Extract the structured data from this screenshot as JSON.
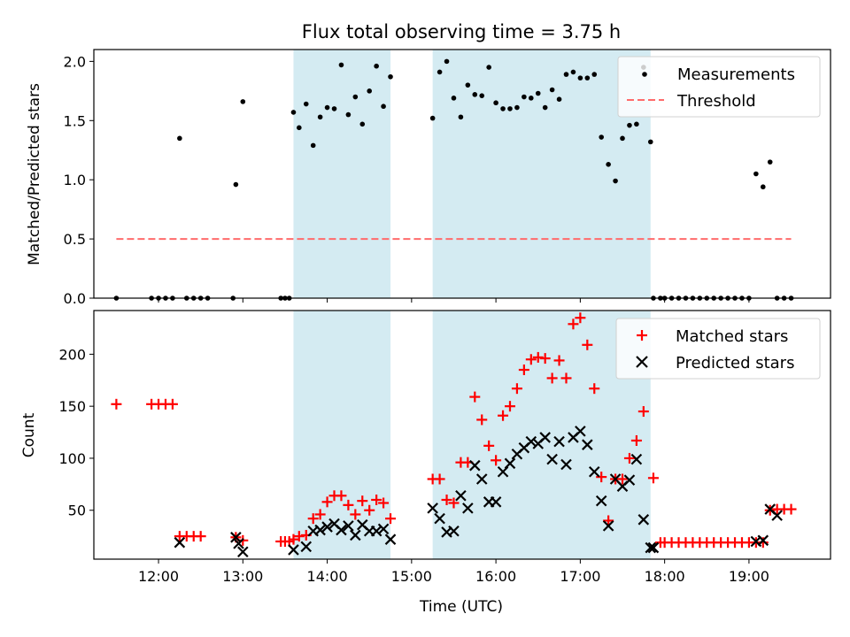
{
  "chart_data": [
    {
      "type": "scatter",
      "title": "Flux total observing time = 3.75 h",
      "ylabel": "Matched/Predicted stars",
      "xlim": [
        "11:14",
        "19:58"
      ],
      "ylim": [
        0,
        2.1
      ],
      "yticks": [
        "0.0",
        "0.5",
        "1.0",
        "1.5",
        "2.0"
      ],
      "shaded_intervals": [
        [
          "13:36",
          "14:45"
        ],
        [
          "15:15",
          "17:50"
        ]
      ],
      "shade_color": "#add8e6",
      "legend": "top-right",
      "series": [
        {
          "name": "Measurements",
          "style": "dot",
          "color": "#000000",
          "x": [
            "11:30",
            "11:55",
            "12:00",
            "12:05",
            "12:10",
            "12:15",
            "12:20",
            "12:25",
            "12:30",
            "12:35",
            "12:53",
            "12:55",
            "13:00",
            "13:27",
            "13:30",
            "13:33",
            "13:36",
            "13:40",
            "13:45",
            "13:50",
            "13:55",
            "14:00",
            "14:05",
            "14:10",
            "14:15",
            "14:20",
            "14:25",
            "14:30",
            "14:35",
            "14:40",
            "14:45",
            "15:15",
            "15:20",
            "15:25",
            "15:30",
            "15:35",
            "15:40",
            "15:45",
            "15:50",
            "15:55",
            "16:00",
            "16:05",
            "16:10",
            "16:15",
            "16:20",
            "16:25",
            "16:30",
            "16:35",
            "16:40",
            "16:45",
            "16:50",
            "16:55",
            "17:00",
            "17:05",
            "17:10",
            "17:15",
            "17:20",
            "17:25",
            "17:30",
            "17:35",
            "17:40",
            "17:45",
            "17:50",
            "17:52",
            "17:57",
            "18:00",
            "18:05",
            "18:10",
            "18:15",
            "18:20",
            "18:25",
            "18:30",
            "18:35",
            "18:40",
            "18:45",
            "18:50",
            "18:55",
            "19:00",
            "19:05",
            "19:10",
            "19:15",
            "19:20",
            "19:25",
            "19:30"
          ],
          "y": [
            0,
            0,
            0,
            0,
            0,
            1.35,
            0,
            0,
            0,
            0,
            0,
            0.96,
            1.66,
            0,
            0,
            0,
            1.57,
            1.44,
            1.64,
            1.29,
            1.53,
            1.61,
            1.6,
            1.97,
            1.55,
            1.7,
            1.47,
            1.75,
            1.96,
            1.62,
            1.87,
            1.52,
            1.91,
            2.0,
            1.69,
            1.53,
            1.8,
            1.72,
            1.71,
            1.95,
            1.65,
            1.6,
            1.6,
            1.61,
            1.7,
            1.69,
            1.73,
            1.61,
            1.76,
            1.68,
            1.89,
            1.91,
            1.86,
            1.86,
            1.89,
            1.36,
            1.13,
            0.99,
            1.35,
            1.46,
            1.47,
            1.95,
            1.32,
            0,
            0,
            0,
            0,
            0,
            0,
            0,
            0,
            0,
            0,
            0,
            0,
            0,
            0,
            0,
            1.05,
            0.94,
            1.15,
            0,
            0,
            0
          ]
        },
        {
          "name": "Threshold",
          "style": "dashed-line",
          "color": "#ff6b6b",
          "x": [
            "11:30",
            "19:30"
          ],
          "y": [
            0.5,
            0.5
          ]
        }
      ]
    },
    {
      "type": "scatter",
      "xlabel": "Time (UTC)",
      "ylabel": "Count",
      "xlim": [
        "11:14",
        "19:58"
      ],
      "ylim": [
        3,
        242
      ],
      "yticks": [
        "50",
        "100",
        "150",
        "200"
      ],
      "xticks": [
        "12:00",
        "13:00",
        "14:00",
        "15:00",
        "16:00",
        "17:00",
        "18:00",
        "19:00"
      ],
      "shaded_intervals": [
        [
          "13:36",
          "14:45"
        ],
        [
          "15:15",
          "17:50"
        ]
      ],
      "shade_color": "#add8e6",
      "legend": "top-right",
      "series": [
        {
          "name": "Matched stars",
          "marker": "+",
          "color": "#ff0000",
          "x": [
            "11:30",
            "11:55",
            "12:00",
            "12:05",
            "12:10",
            "12:15",
            "12:20",
            "12:25",
            "12:30",
            "12:55",
            "13:00",
            "13:27",
            "13:30",
            "13:33",
            "13:36",
            "13:40",
            "13:45",
            "13:50",
            "13:55",
            "14:00",
            "14:05",
            "14:10",
            "14:15",
            "14:20",
            "14:25",
            "14:30",
            "14:35",
            "14:40",
            "14:45",
            "15:15",
            "15:20",
            "15:25",
            "15:30",
            "15:35",
            "15:40",
            "15:45",
            "15:50",
            "15:55",
            "16:00",
            "16:05",
            "16:10",
            "16:15",
            "16:20",
            "16:25",
            "16:30",
            "16:35",
            "16:40",
            "16:45",
            "16:50",
            "16:55",
            "17:00",
            "17:05",
            "17:10",
            "17:15",
            "17:20",
            "17:25",
            "17:30",
            "17:35",
            "17:40",
            "17:45",
            "17:52",
            "17:57",
            "18:00",
            "18:05",
            "18:10",
            "18:15",
            "18:20",
            "18:25",
            "18:30",
            "18:35",
            "18:40",
            "18:45",
            "18:50",
            "18:55",
            "19:00",
            "19:05",
            "19:10",
            "19:15",
            "19:20",
            "19:25",
            "19:30"
          ],
          "y": [
            152,
            152,
            152,
            152,
            152,
            25,
            25,
            25,
            25,
            24,
            21,
            20,
            20,
            20,
            22,
            25,
            26,
            42,
            46,
            58,
            64,
            64,
            55,
            46,
            59,
            50,
            60,
            57,
            42,
            80,
            80,
            60,
            57,
            96,
            96,
            159,
            137,
            112,
            98,
            141,
            150,
            167,
            185,
            195,
            197,
            196,
            177,
            194,
            177,
            229,
            235,
            209,
            167,
            82,
            40,
            80,
            80,
            100,
            117,
            145,
            81,
            19,
            19,
            19,
            19,
            19,
            19,
            19,
            19,
            19,
            19,
            19,
            19,
            19,
            19,
            19,
            19,
            50,
            51,
            51,
            51
          ]
        },
        {
          "name": "Predicted stars",
          "marker": "x",
          "color": "#000000",
          "x": [
            "12:15",
            "12:55",
            "12:57",
            "13:00",
            "13:36",
            "13:45",
            "13:50",
            "13:55",
            "14:00",
            "14:05",
            "14:10",
            "14:15",
            "14:20",
            "14:25",
            "14:30",
            "14:35",
            "14:40",
            "14:45",
            "15:15",
            "15:20",
            "15:25",
            "15:30",
            "15:35",
            "15:40",
            "15:45",
            "15:50",
            "15:55",
            "16:00",
            "16:05",
            "16:10",
            "16:15",
            "16:20",
            "16:25",
            "16:30",
            "16:35",
            "16:40",
            "16:45",
            "16:50",
            "16:55",
            "17:00",
            "17:05",
            "17:10",
            "17:15",
            "17:20",
            "17:25",
            "17:30",
            "17:35",
            "17:40",
            "17:45",
            "17:50",
            "17:52",
            "19:05",
            "19:10",
            "19:15",
            "19:20"
          ],
          "y": [
            19,
            24,
            18,
            10,
            12,
            15,
            30,
            31,
            34,
            37,
            31,
            35,
            26,
            36,
            30,
            30,
            32,
            22,
            52,
            42,
            29,
            30,
            64,
            52,
            93,
            80,
            58,
            58,
            87,
            95,
            104,
            110,
            116,
            114,
            120,
            99,
            116,
            94,
            120,
            126,
            113,
            87,
            59,
            35,
            80,
            73,
            79,
            99,
            41,
            14,
            14,
            20,
            21,
            51,
            45
          ]
        }
      ]
    }
  ]
}
